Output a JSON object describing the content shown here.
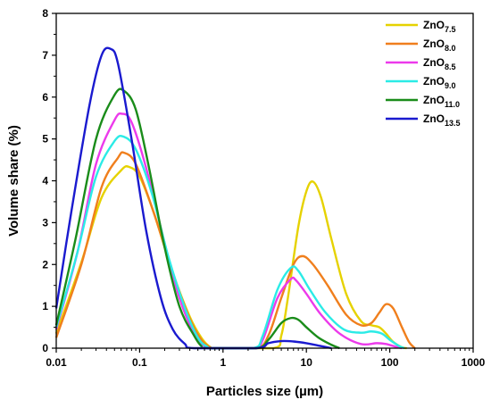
{
  "chart_data": {
    "type": "line",
    "xlabel": "Particles size (µm)",
    "ylabel": "Volume share (%)",
    "xscale": "log",
    "xlim": [
      0.01,
      1000
    ],
    "ylim": [
      0,
      8
    ],
    "xticks": [
      "0.01",
      "0.1",
      "1",
      "10",
      "100",
      "1000"
    ],
    "yticks": [
      "0",
      "1",
      "2",
      "3",
      "4",
      "5",
      "6",
      "7",
      "8"
    ],
    "legend_position": "top-right",
    "series": [
      {
        "name": "ZnO",
        "sub": "7.5",
        "color": "#e6d200",
        "points": [
          [
            0.01,
            0.35
          ],
          [
            0.02,
            2.05
          ],
          [
            0.035,
            3.6
          ],
          [
            0.06,
            4.25
          ],
          [
            0.075,
            4.33
          ],
          [
            0.1,
            4.1
          ],
          [
            0.15,
            3.2
          ],
          [
            0.25,
            1.8
          ],
          [
            0.4,
            0.75
          ],
          [
            0.55,
            0.25
          ],
          [
            0.7,
            0.03
          ],
          [
            0.85,
            0
          ],
          [
            4,
            0
          ],
          [
            5,
            0.3
          ],
          [
            6,
            1.2
          ],
          [
            8,
            2.9
          ],
          [
            10,
            3.75
          ],
          [
            12,
            3.98
          ],
          [
            15,
            3.6
          ],
          [
            20,
            2.6
          ],
          [
            30,
            1.3
          ],
          [
            45,
            0.65
          ],
          [
            60,
            0.55
          ],
          [
            75,
            0.5
          ],
          [
            90,
            0.35
          ],
          [
            110,
            0.15
          ],
          [
            140,
            0.02
          ],
          [
            160,
            0
          ]
        ]
      },
      {
        "name": "ZnO",
        "sub": "8.0",
        "color": "#f07f1d",
        "points": [
          [
            0.01,
            0.25
          ],
          [
            0.02,
            2.0
          ],
          [
            0.035,
            3.85
          ],
          [
            0.055,
            4.55
          ],
          [
            0.065,
            4.67
          ],
          [
            0.09,
            4.4
          ],
          [
            0.15,
            3.2
          ],
          [
            0.25,
            1.8
          ],
          [
            0.4,
            0.7
          ],
          [
            0.55,
            0.2
          ],
          [
            0.7,
            0.02
          ],
          [
            0.85,
            0
          ],
          [
            2.5,
            0
          ],
          [
            3.5,
            0.3
          ],
          [
            5,
            1.2
          ],
          [
            7,
            2.0
          ],
          [
            9,
            2.2
          ],
          [
            12,
            2.0
          ],
          [
            18,
            1.5
          ],
          [
            30,
            0.8
          ],
          [
            45,
            0.55
          ],
          [
            60,
            0.6
          ],
          [
            75,
            0.85
          ],
          [
            90,
            1.05
          ],
          [
            110,
            0.95
          ],
          [
            140,
            0.5
          ],
          [
            170,
            0.15
          ],
          [
            200,
            0
          ]
        ]
      },
      {
        "name": "ZnO",
        "sub": "8.5",
        "color": "#ec3aeb",
        "points": [
          [
            0.01,
            0.45
          ],
          [
            0.018,
            2.3
          ],
          [
            0.03,
            4.4
          ],
          [
            0.05,
            5.45
          ],
          [
            0.062,
            5.6
          ],
          [
            0.08,
            5.4
          ],
          [
            0.12,
            4.3
          ],
          [
            0.2,
            2.5
          ],
          [
            0.3,
            1.2
          ],
          [
            0.45,
            0.35
          ],
          [
            0.6,
            0.05
          ],
          [
            0.7,
            0
          ],
          [
            2.3,
            0
          ],
          [
            3,
            0.2
          ],
          [
            4.5,
            1.2
          ],
          [
            6.5,
            1.65
          ],
          [
            7.5,
            1.62
          ],
          [
            10,
            1.3
          ],
          [
            15,
            0.8
          ],
          [
            25,
            0.35
          ],
          [
            45,
            0.1
          ],
          [
            70,
            0.12
          ],
          [
            90,
            0.1
          ],
          [
            120,
            0.03
          ],
          [
            140,
            0
          ]
        ]
      },
      {
        "name": "ZnO",
        "sub": "9.0",
        "color": "#2bebe6",
        "points": [
          [
            0.01,
            0.5
          ],
          [
            0.018,
            2.3
          ],
          [
            0.03,
            4.1
          ],
          [
            0.05,
            4.95
          ],
          [
            0.065,
            5.05
          ],
          [
            0.09,
            4.75
          ],
          [
            0.14,
            3.7
          ],
          [
            0.22,
            2.2
          ],
          [
            0.35,
            0.95
          ],
          [
            0.5,
            0.25
          ],
          [
            0.65,
            0.03
          ],
          [
            0.75,
            0
          ],
          [
            2.3,
            0
          ],
          [
            3,
            0.3
          ],
          [
            4.5,
            1.4
          ],
          [
            6.5,
            1.92
          ],
          [
            8,
            1.85
          ],
          [
            11,
            1.4
          ],
          [
            17,
            0.85
          ],
          [
            28,
            0.45
          ],
          [
            45,
            0.37
          ],
          [
            60,
            0.4
          ],
          [
            80,
            0.35
          ],
          [
            100,
            0.2
          ],
          [
            130,
            0.05
          ],
          [
            150,
            0
          ]
        ]
      },
      {
        "name": "ZnO",
        "sub": "11.0",
        "color": "#1a8c1a",
        "points": [
          [
            0.01,
            0.55
          ],
          [
            0.017,
            2.6
          ],
          [
            0.03,
            5.0
          ],
          [
            0.05,
            6.05
          ],
          [
            0.065,
            6.15
          ],
          [
            0.09,
            5.7
          ],
          [
            0.13,
            4.3
          ],
          [
            0.2,
            2.4
          ],
          [
            0.3,
            1.0
          ],
          [
            0.45,
            0.3
          ],
          [
            0.55,
            0.05
          ],
          [
            0.65,
            0
          ],
          [
            2.5,
            0
          ],
          [
            3.5,
            0.2
          ],
          [
            5,
            0.6
          ],
          [
            6.5,
            0.72
          ],
          [
            8,
            0.68
          ],
          [
            10,
            0.5
          ],
          [
            14,
            0.25
          ],
          [
            20,
            0.08
          ],
          [
            25,
            0
          ]
        ]
      },
      {
        "name": "ZnO",
        "sub": "13.5",
        "color": "#1a1acf",
        "points": [
          [
            0.01,
            0.95
          ],
          [
            0.015,
            3.2
          ],
          [
            0.025,
            5.8
          ],
          [
            0.035,
            7.0
          ],
          [
            0.045,
            7.15
          ],
          [
            0.055,
            6.8
          ],
          [
            0.08,
            5.0
          ],
          [
            0.12,
            2.8
          ],
          [
            0.18,
            1.2
          ],
          [
            0.25,
            0.45
          ],
          [
            0.35,
            0.1
          ],
          [
            0.45,
            0
          ],
          [
            2.5,
            0
          ],
          [
            3.5,
            0.12
          ],
          [
            5,
            0.17
          ],
          [
            7,
            0.16
          ],
          [
            10,
            0.12
          ],
          [
            15,
            0.05
          ],
          [
            20,
            0
          ]
        ]
      }
    ]
  }
}
